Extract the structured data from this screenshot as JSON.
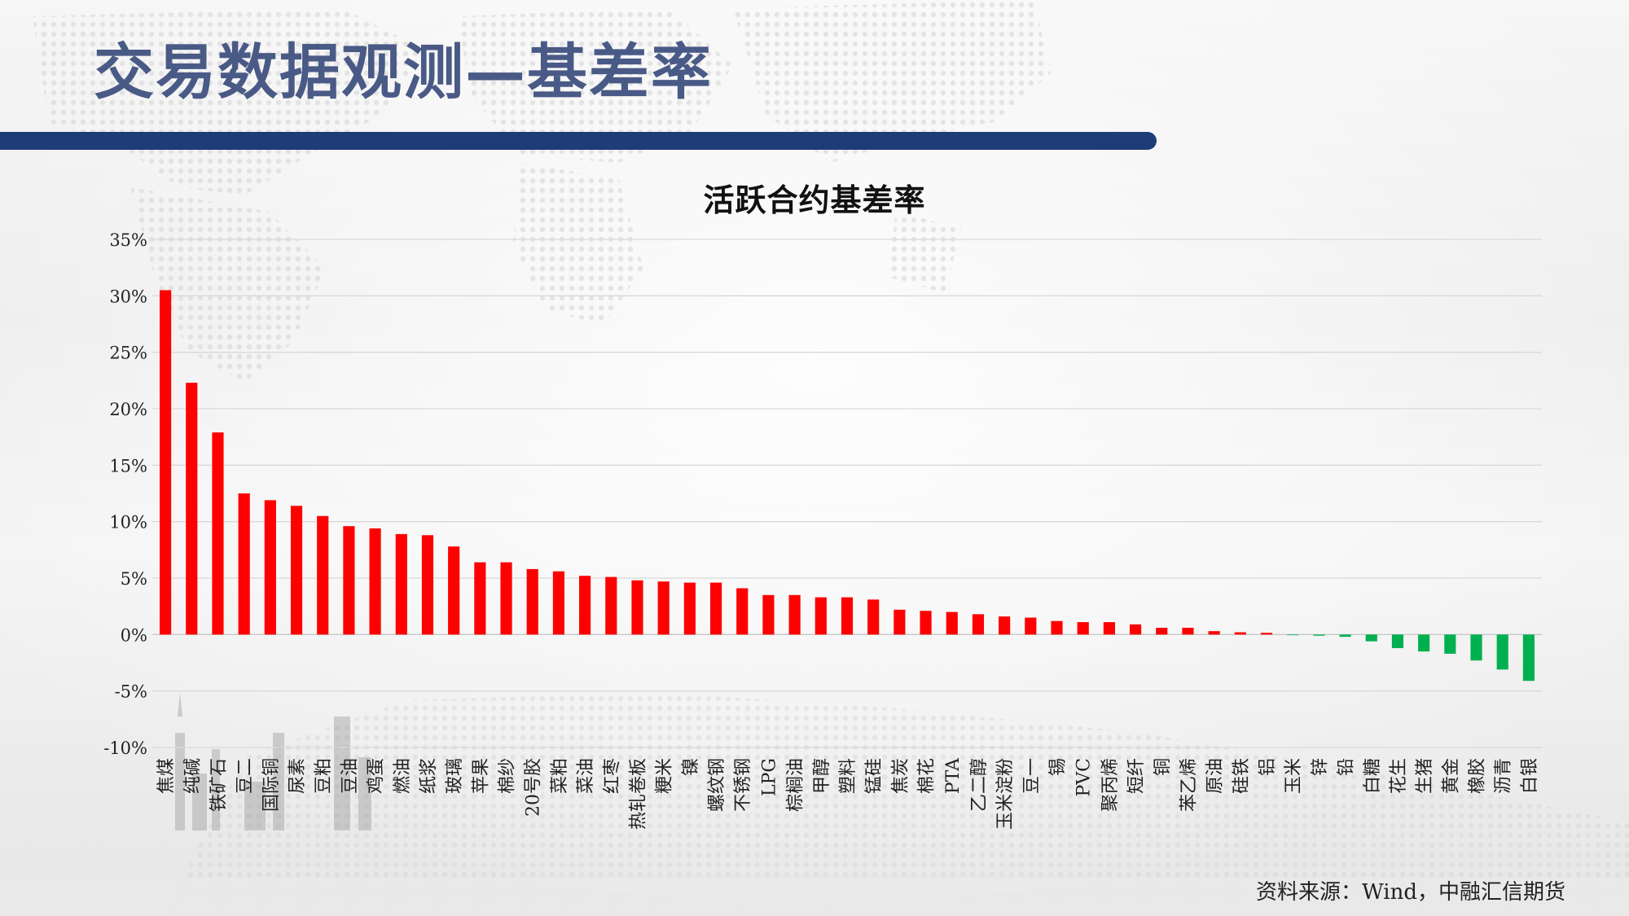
{
  "slide": {
    "title": "交易数据观测—基差率",
    "source": "资料来源：Wind，中融汇信期货"
  },
  "colors": {
    "positive_bar": "#ff0000",
    "negative_bar": "#00b050",
    "title_bar": "#1d3c78",
    "title_text": "#4a5a86"
  },
  "chart_data": {
    "type": "bar",
    "title": "活跃合约基差率",
    "xlabel": "",
    "ylabel": "",
    "ylim": [
      -10,
      35
    ],
    "y_ticks": [
      35,
      30,
      25,
      20,
      15,
      10,
      5,
      0,
      -5,
      -10
    ],
    "y_tick_labels": [
      "35%",
      "30%",
      "25%",
      "20%",
      "15%",
      "10%",
      "5%",
      "0%",
      "-5%",
      "-10%"
    ],
    "grid": true,
    "legend": "none",
    "categories": [
      "焦煤",
      "纯碱",
      "铁矿石",
      "豆二",
      "国际铜",
      "尿素",
      "豆粕",
      "豆油",
      "鸡蛋",
      "燃油",
      "纸浆",
      "玻璃",
      "苹果",
      "棉纱",
      "20号胶",
      "菜粕",
      "菜油",
      "红枣",
      "热轧卷板",
      "粳米",
      "镍",
      "螺纹钢",
      "不锈钢",
      "LPG",
      "棕榈油",
      "甲醇",
      "塑料",
      "锰硅",
      "焦炭",
      "棉花",
      "PTA",
      "乙二醇",
      "玉米淀粉",
      "豆一",
      "锡",
      "PVC",
      "聚丙烯",
      "短纤",
      "铜",
      "苯乙烯",
      "原油",
      "硅铁",
      "铝",
      "玉米",
      "锌",
      "铅",
      "白糖",
      "花生",
      "生猪",
      "黄金",
      "橡胶",
      "沥青",
      "白银"
    ],
    "values": [
      30.5,
      22.3,
      17.9,
      12.5,
      11.9,
      11.4,
      10.5,
      9.6,
      9.4,
      8.9,
      8.8,
      7.8,
      6.4,
      6.4,
      5.8,
      5.6,
      5.2,
      5.1,
      4.8,
      4.7,
      4.6,
      4.6,
      4.1,
      3.5,
      3.5,
      3.3,
      3.3,
      3.1,
      2.2,
      2.1,
      2.0,
      1.8,
      1.6,
      1.5,
      1.2,
      1.1,
      1.1,
      0.9,
      0.6,
      0.6,
      0.3,
      0.2,
      0.15,
      -0.05,
      -0.1,
      -0.2,
      -0.6,
      -1.2,
      -1.5,
      -1.7,
      -2.3,
      -3.1,
      -4.1
    ]
  }
}
